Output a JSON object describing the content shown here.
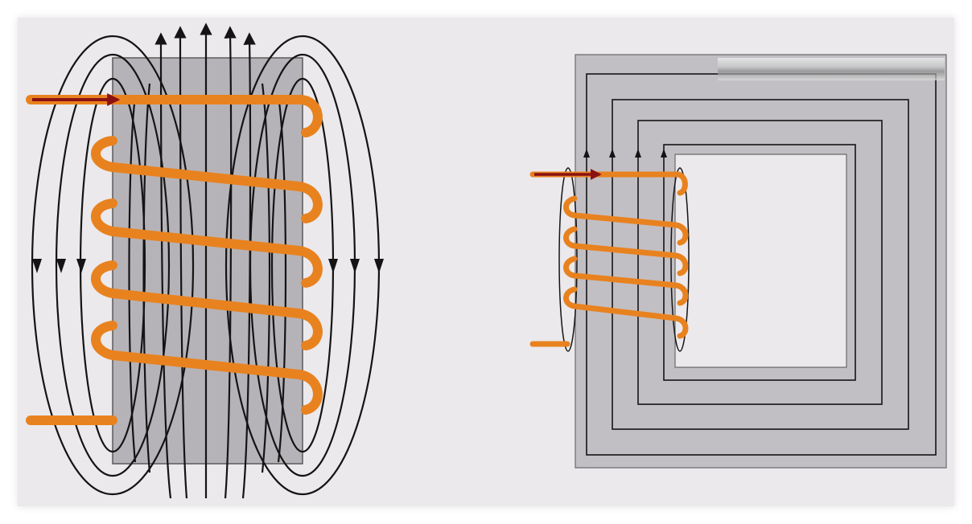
{
  "colors": {
    "background": "#ebe9ec",
    "core": "#b6b3b8",
    "core_light": "#c2bfc4",
    "field_line": "#141414",
    "wire": "#e8821f",
    "current_arrow": "#8b1113"
  },
  "figures": [
    {
      "name": "solenoid-with-straight-core",
      "coil_turns": 5,
      "shows_current_arrow": true,
      "shows_field_lines": true
    },
    {
      "name": "coil-on-closed-rectangular-core",
      "coil_turns": 5,
      "shows_current_arrow": true,
      "shows_field_lines": true
    }
  ]
}
